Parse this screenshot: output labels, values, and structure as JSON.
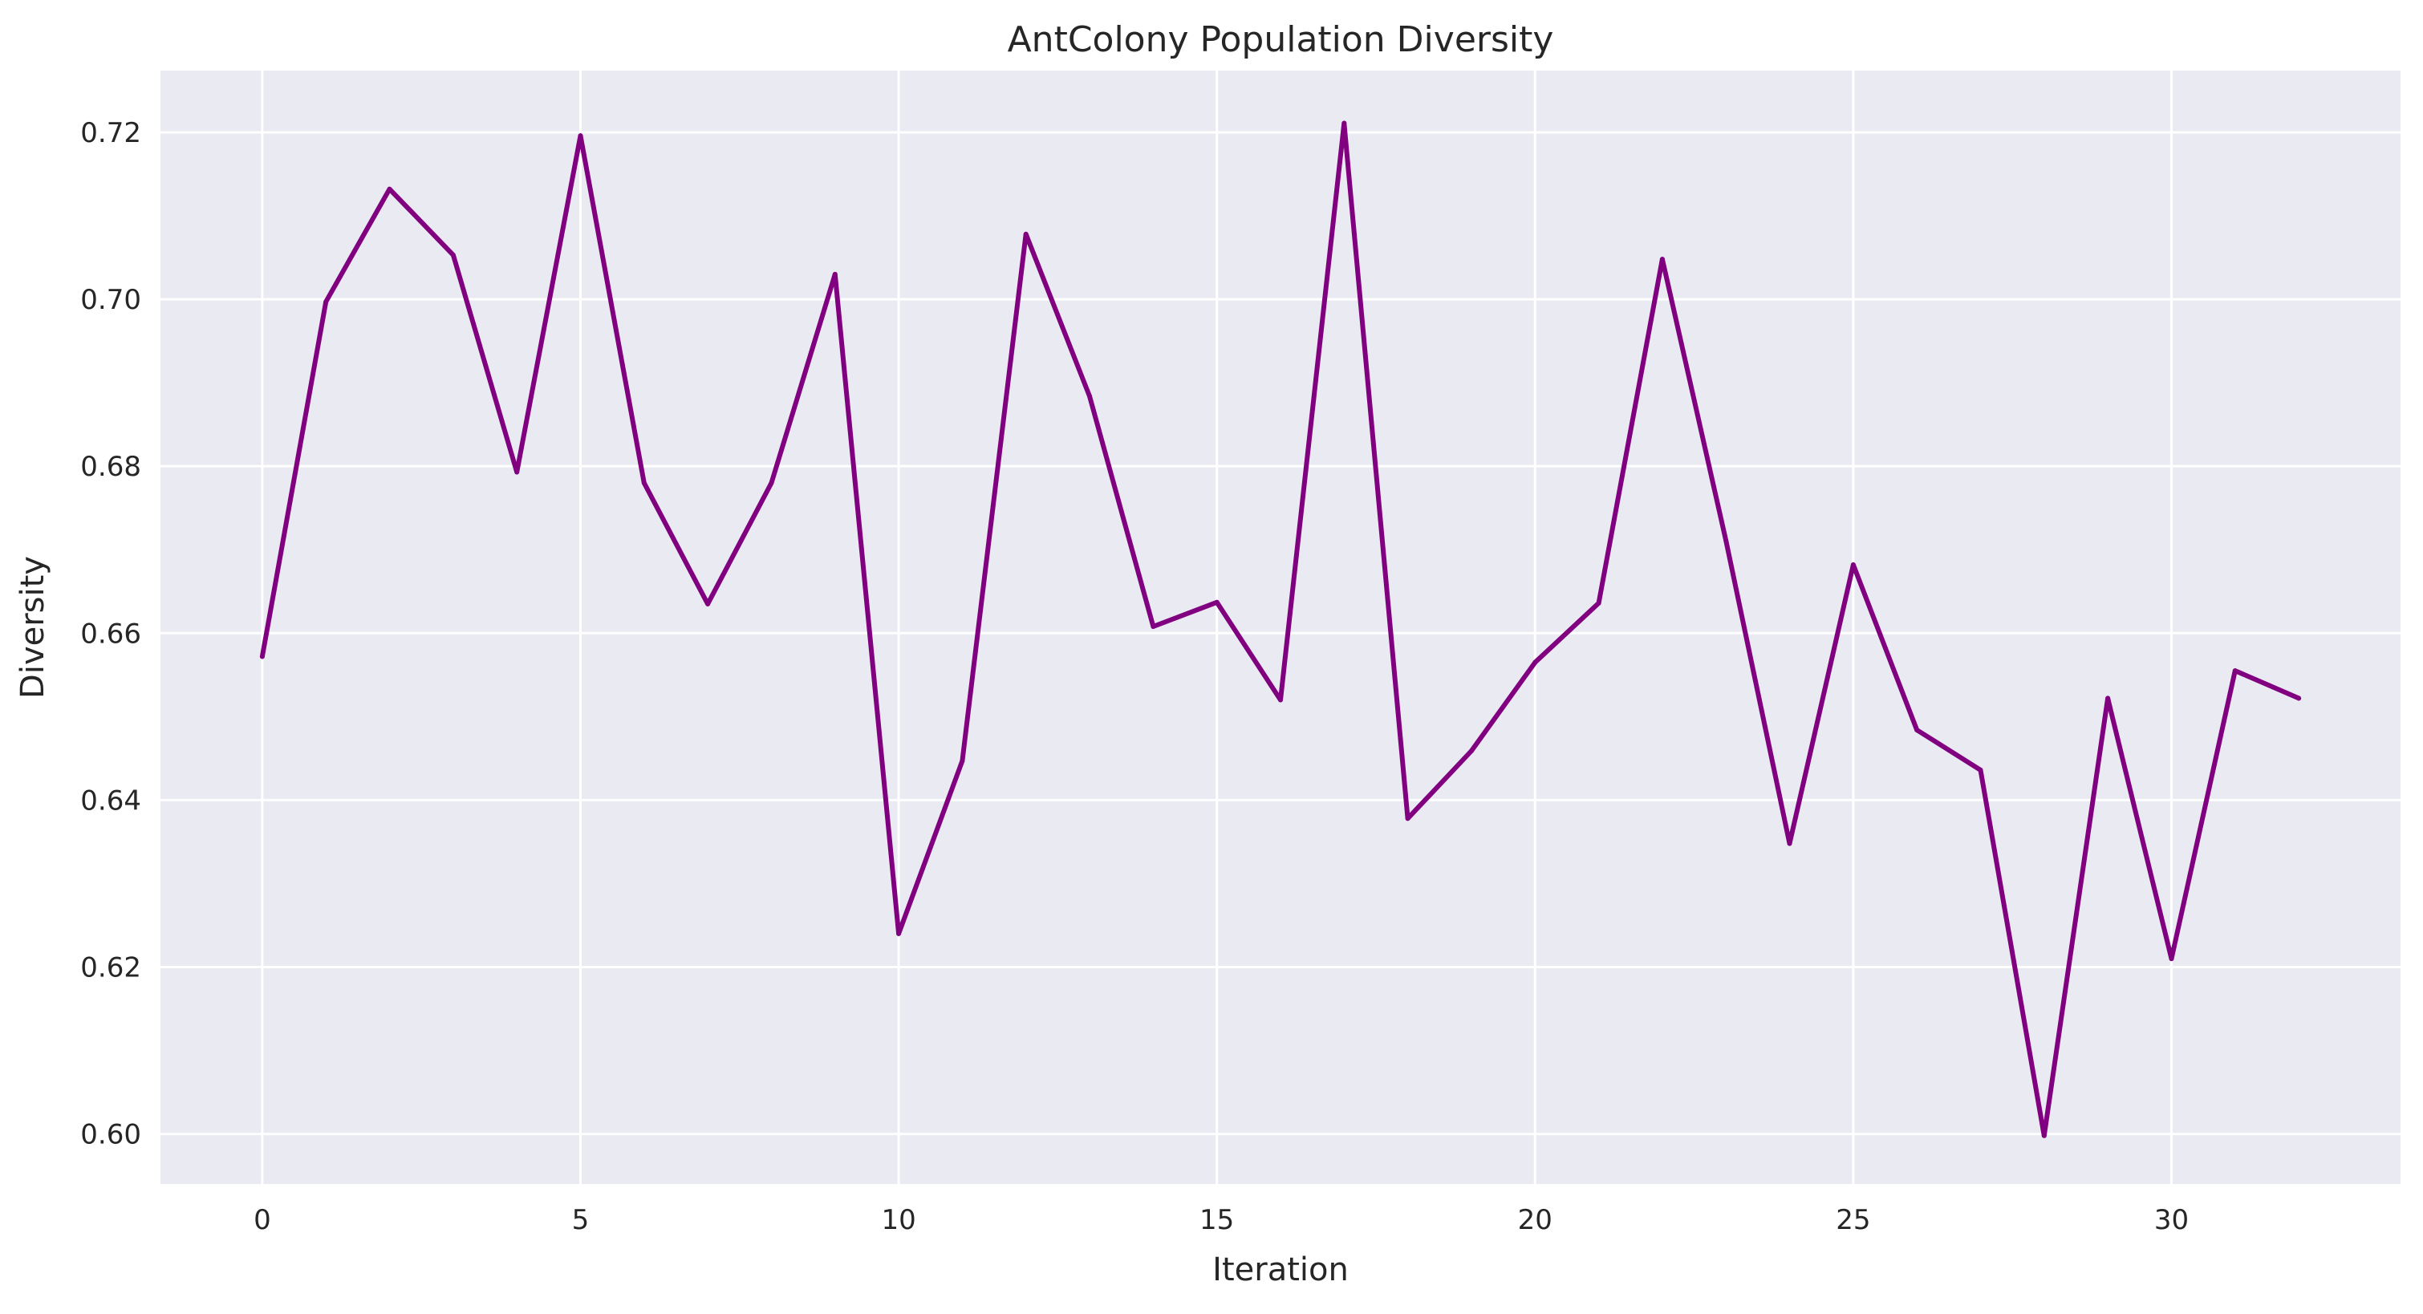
{
  "chart_data": {
    "type": "line",
    "title": "AntColony Population Diversity",
    "xlabel": "Iteration",
    "ylabel": "Diversity",
    "xlim": [
      -1.6,
      33.6
    ],
    "ylim": [
      0.594,
      0.7274
    ],
    "xticks": [
      0,
      5,
      10,
      15,
      20,
      25,
      30
    ],
    "yticks": [
      0.6,
      0.62,
      0.64,
      0.66,
      0.68,
      0.7,
      0.72
    ],
    "grid": true,
    "legend": "none",
    "background_color": "#eaeaf2",
    "grid_color": "#ffffff",
    "series": [
      {
        "color": "#800080",
        "x": [
          0,
          1,
          2,
          3,
          4,
          5,
          6,
          7,
          8,
          9,
          10,
          11,
          12,
          13,
          14,
          15,
          16,
          17,
          18,
          19,
          20,
          21,
          22,
          23,
          24,
          25,
          26,
          27,
          28,
          29,
          30,
          31,
          32
        ],
        "y": [
          0.6572,
          0.6997,
          0.7132,
          0.7053,
          0.6793,
          0.7196,
          0.678,
          0.6635,
          0.678,
          0.703,
          0.624,
          0.6447,
          0.7078,
          0.6884,
          0.6608,
          0.6637,
          0.652,
          0.7211,
          0.6378,
          0.6459,
          0.6565,
          0.6636,
          0.7048,
          0.6711,
          0.6348,
          0.6682,
          0.6484,
          0.6436,
          0.5998,
          0.6522,
          0.621,
          0.6555,
          0.6522
        ]
      }
    ]
  }
}
